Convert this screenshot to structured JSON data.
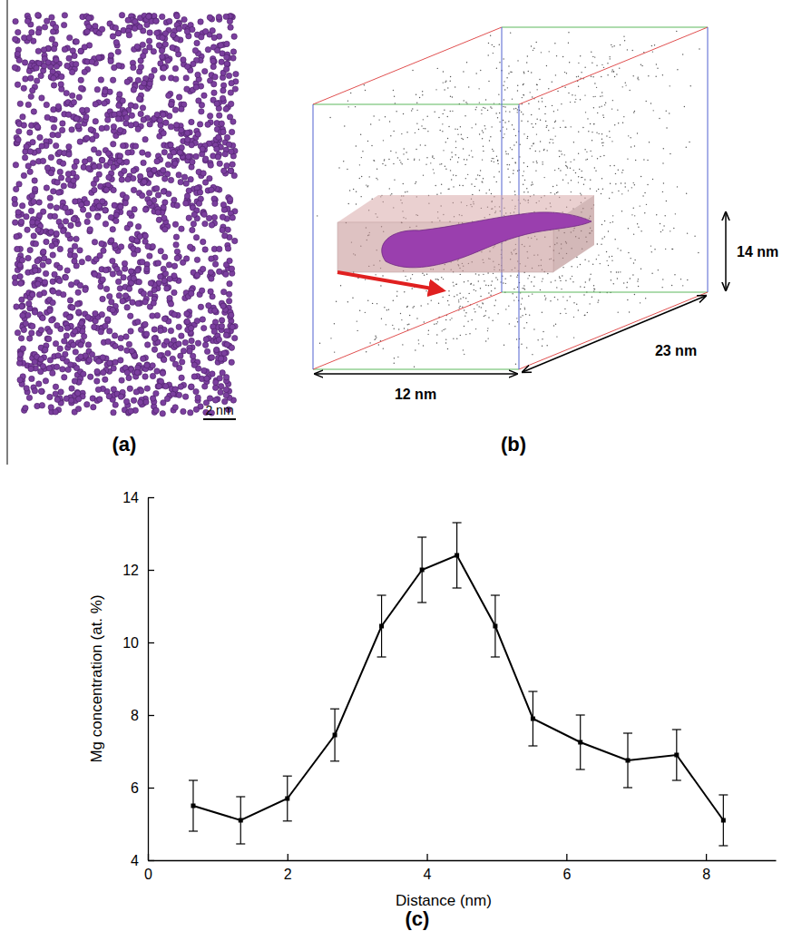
{
  "chart_data": {
    "type": "line",
    "x": [
      0.65,
      1.33,
      2.0,
      2.68,
      3.35,
      3.93,
      4.43,
      4.98,
      5.52,
      6.2,
      6.88,
      7.58,
      8.25
    ],
    "values": [
      5.5,
      5.1,
      5.7,
      7.45,
      10.45,
      12.0,
      12.4,
      10.45,
      7.9,
      7.25,
      6.75,
      6.9,
      5.1
    ],
    "errors": [
      0.7,
      0.65,
      0.62,
      0.72,
      0.85,
      0.9,
      0.9,
      0.85,
      0.75,
      0.75,
      0.75,
      0.7,
      0.7
    ],
    "x_label": "Distance (nm)",
    "y_label": "Mg concentration (at. %)",
    "xlim": [
      0,
      9
    ],
    "ylim": [
      4,
      14
    ],
    "xticks": [
      0,
      2,
      4,
      6,
      8
    ],
    "yticks": [
      4,
      6,
      8,
      10,
      12,
      14
    ],
    "color": "#000000",
    "marker": "square",
    "line_style": "solid"
  },
  "figure": {
    "panels": [
      {
        "label": "(a)",
        "scale_bar": "2 nm"
      },
      {
        "label": "(b)",
        "dimensions": {
          "width": "12 nm",
          "depth": "23 nm",
          "height": "14 nm"
        }
      },
      {
        "label": "(c)"
      }
    ]
  }
}
